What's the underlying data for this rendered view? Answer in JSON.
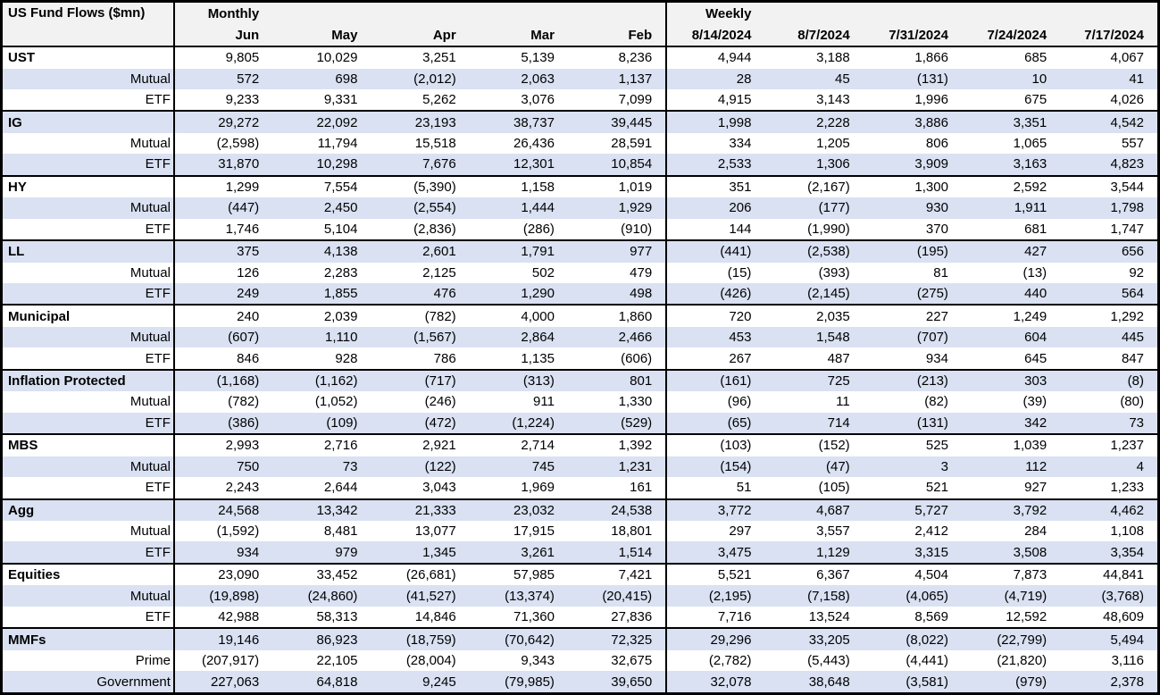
{
  "table": {
    "title": "US Fund Flows ($mn)",
    "group_headers": {
      "monthly": "Monthly",
      "weekly": "Weekly"
    },
    "monthly_columns": [
      "Jun",
      "May",
      "Apr",
      "Mar",
      "Feb"
    ],
    "weekly_columns": [
      "8/14/2024",
      "8/7/2024",
      "7/31/2024",
      "7/24/2024",
      "7/17/2024"
    ],
    "colors": {
      "stripe": "#d9e1f2",
      "header_bg": "#f2f2f2",
      "border": "#000000"
    },
    "rows": [
      {
        "label": "UST",
        "type": "category",
        "monthly": [
          "9,805",
          "10,029",
          "3,251",
          "5,139",
          "8,236"
        ],
        "weekly": [
          "4,944",
          "3,188",
          "1,866",
          "685",
          "4,067"
        ]
      },
      {
        "label": "Mutual",
        "type": "sub",
        "monthly": [
          "572",
          "698",
          "(2,012)",
          "2,063",
          "1,137"
        ],
        "weekly": [
          "28",
          "45",
          "(131)",
          "10",
          "41"
        ]
      },
      {
        "label": "ETF",
        "type": "sub",
        "monthly": [
          "9,233",
          "9,331",
          "5,262",
          "3,076",
          "7,099"
        ],
        "weekly": [
          "4,915",
          "3,143",
          "1,996",
          "675",
          "4,026"
        ]
      },
      {
        "label": "IG",
        "type": "category",
        "monthly": [
          "29,272",
          "22,092",
          "23,193",
          "38,737",
          "39,445"
        ],
        "weekly": [
          "1,998",
          "2,228",
          "3,886",
          "3,351",
          "4,542"
        ]
      },
      {
        "label": "Mutual",
        "type": "sub",
        "monthly": [
          "(2,598)",
          "11,794",
          "15,518",
          "26,436",
          "28,591"
        ],
        "weekly": [
          "334",
          "1,205",
          "806",
          "1,065",
          "557"
        ]
      },
      {
        "label": "ETF",
        "type": "sub",
        "monthly": [
          "31,870",
          "10,298",
          "7,676",
          "12,301",
          "10,854"
        ],
        "weekly": [
          "2,533",
          "1,306",
          "3,909",
          "3,163",
          "4,823"
        ]
      },
      {
        "label": "HY",
        "type": "category",
        "monthly": [
          "1,299",
          "7,554",
          "(5,390)",
          "1,158",
          "1,019"
        ],
        "weekly": [
          "351",
          "(2,167)",
          "1,300",
          "2,592",
          "3,544"
        ]
      },
      {
        "label": "Mutual",
        "type": "sub",
        "monthly": [
          "(447)",
          "2,450",
          "(2,554)",
          "1,444",
          "1,929"
        ],
        "weekly": [
          "206",
          "(177)",
          "930",
          "1,911",
          "1,798"
        ]
      },
      {
        "label": "ETF",
        "type": "sub",
        "monthly": [
          "1,746",
          "5,104",
          "(2,836)",
          "(286)",
          "(910)"
        ],
        "weekly": [
          "144",
          "(1,990)",
          "370",
          "681",
          "1,747"
        ]
      },
      {
        "label": "LL",
        "type": "category",
        "monthly": [
          "375",
          "4,138",
          "2,601",
          "1,791",
          "977"
        ],
        "weekly": [
          "(441)",
          "(2,538)",
          "(195)",
          "427",
          "656"
        ]
      },
      {
        "label": "Mutual",
        "type": "sub",
        "monthly": [
          "126",
          "2,283",
          "2,125",
          "502",
          "479"
        ],
        "weekly": [
          "(15)",
          "(393)",
          "81",
          "(13)",
          "92"
        ]
      },
      {
        "label": "ETF",
        "type": "sub",
        "monthly": [
          "249",
          "1,855",
          "476",
          "1,290",
          "498"
        ],
        "weekly": [
          "(426)",
          "(2,145)",
          "(275)",
          "440",
          "564"
        ]
      },
      {
        "label": "Municipal",
        "type": "category",
        "monthly": [
          "240",
          "2,039",
          "(782)",
          "4,000",
          "1,860"
        ],
        "weekly": [
          "720",
          "2,035",
          "227",
          "1,249",
          "1,292"
        ]
      },
      {
        "label": "Mutual",
        "type": "sub",
        "monthly": [
          "(607)",
          "1,110",
          "(1,567)",
          "2,864",
          "2,466"
        ],
        "weekly": [
          "453",
          "1,548",
          "(707)",
          "604",
          "445"
        ]
      },
      {
        "label": "ETF",
        "type": "sub",
        "monthly": [
          "846",
          "928",
          "786",
          "1,135",
          "(606)"
        ],
        "weekly": [
          "267",
          "487",
          "934",
          "645",
          "847"
        ]
      },
      {
        "label": "Inflation Protected",
        "type": "category",
        "monthly": [
          "(1,168)",
          "(1,162)",
          "(717)",
          "(313)",
          "801"
        ],
        "weekly": [
          "(161)",
          "725",
          "(213)",
          "303",
          "(8)"
        ]
      },
      {
        "label": "Mutual",
        "type": "sub",
        "monthly": [
          "(782)",
          "(1,052)",
          "(246)",
          "911",
          "1,330"
        ],
        "weekly": [
          "(96)",
          "11",
          "(82)",
          "(39)",
          "(80)"
        ]
      },
      {
        "label": "ETF",
        "type": "sub",
        "monthly": [
          "(386)",
          "(109)",
          "(472)",
          "(1,224)",
          "(529)"
        ],
        "weekly": [
          "(65)",
          "714",
          "(131)",
          "342",
          "73"
        ]
      },
      {
        "label": "MBS",
        "type": "category",
        "monthly": [
          "2,993",
          "2,716",
          "2,921",
          "2,714",
          "1,392"
        ],
        "weekly": [
          "(103)",
          "(152)",
          "525",
          "1,039",
          "1,237"
        ]
      },
      {
        "label": "Mutual",
        "type": "sub",
        "monthly": [
          "750",
          "73",
          "(122)",
          "745",
          "1,231"
        ],
        "weekly": [
          "(154)",
          "(47)",
          "3",
          "112",
          "4"
        ]
      },
      {
        "label": "ETF",
        "type": "sub",
        "monthly": [
          "2,243",
          "2,644",
          "3,043",
          "1,969",
          "161"
        ],
        "weekly": [
          "51",
          "(105)",
          "521",
          "927",
          "1,233"
        ]
      },
      {
        "label": "Agg",
        "type": "category",
        "monthly": [
          "24,568",
          "13,342",
          "21,333",
          "23,032",
          "24,538"
        ],
        "weekly": [
          "3,772",
          "4,687",
          "5,727",
          "3,792",
          "4,462"
        ]
      },
      {
        "label": "Mutual",
        "type": "sub",
        "monthly": [
          "(1,592)",
          "8,481",
          "13,077",
          "17,915",
          "18,801"
        ],
        "weekly": [
          "297",
          "3,557",
          "2,412",
          "284",
          "1,108"
        ]
      },
      {
        "label": "ETF",
        "type": "sub",
        "monthly": [
          "934",
          "979",
          "1,345",
          "3,261",
          "1,514"
        ],
        "weekly": [
          "3,475",
          "1,129",
          "3,315",
          "3,508",
          "3,354"
        ]
      },
      {
        "label": "Equities",
        "type": "category",
        "monthly": [
          "23,090",
          "33,452",
          "(26,681)",
          "57,985",
          "7,421"
        ],
        "weekly": [
          "5,521",
          "6,367",
          "4,504",
          "7,873",
          "44,841"
        ]
      },
      {
        "label": "Mutual",
        "type": "sub",
        "monthly": [
          "(19,898)",
          "(24,860)",
          "(41,527)",
          "(13,374)",
          "(20,415)"
        ],
        "weekly": [
          "(2,195)",
          "(7,158)",
          "(4,065)",
          "(4,719)",
          "(3,768)"
        ]
      },
      {
        "label": "ETF",
        "type": "sub",
        "monthly": [
          "42,988",
          "58,313",
          "14,846",
          "71,360",
          "27,836"
        ],
        "weekly": [
          "7,716",
          "13,524",
          "8,569",
          "12,592",
          "48,609"
        ]
      },
      {
        "label": "MMFs",
        "type": "category",
        "monthly": [
          "19,146",
          "86,923",
          "(18,759)",
          "(70,642)",
          "72,325"
        ],
        "weekly": [
          "29,296",
          "33,205",
          "(8,022)",
          "(22,799)",
          "5,494"
        ]
      },
      {
        "label": "Prime",
        "type": "sub",
        "monthly": [
          "(207,917)",
          "22,105",
          "(28,004)",
          "9,343",
          "32,675"
        ],
        "weekly": [
          "(2,782)",
          "(5,443)",
          "(4,441)",
          "(21,820)",
          "3,116"
        ]
      },
      {
        "label": "Government",
        "type": "sub",
        "monthly": [
          "227,063",
          "64,818",
          "9,245",
          "(79,985)",
          "39,650"
        ],
        "weekly": [
          "32,078",
          "38,648",
          "(3,581)",
          "(979)",
          "2,378"
        ]
      }
    ]
  }
}
